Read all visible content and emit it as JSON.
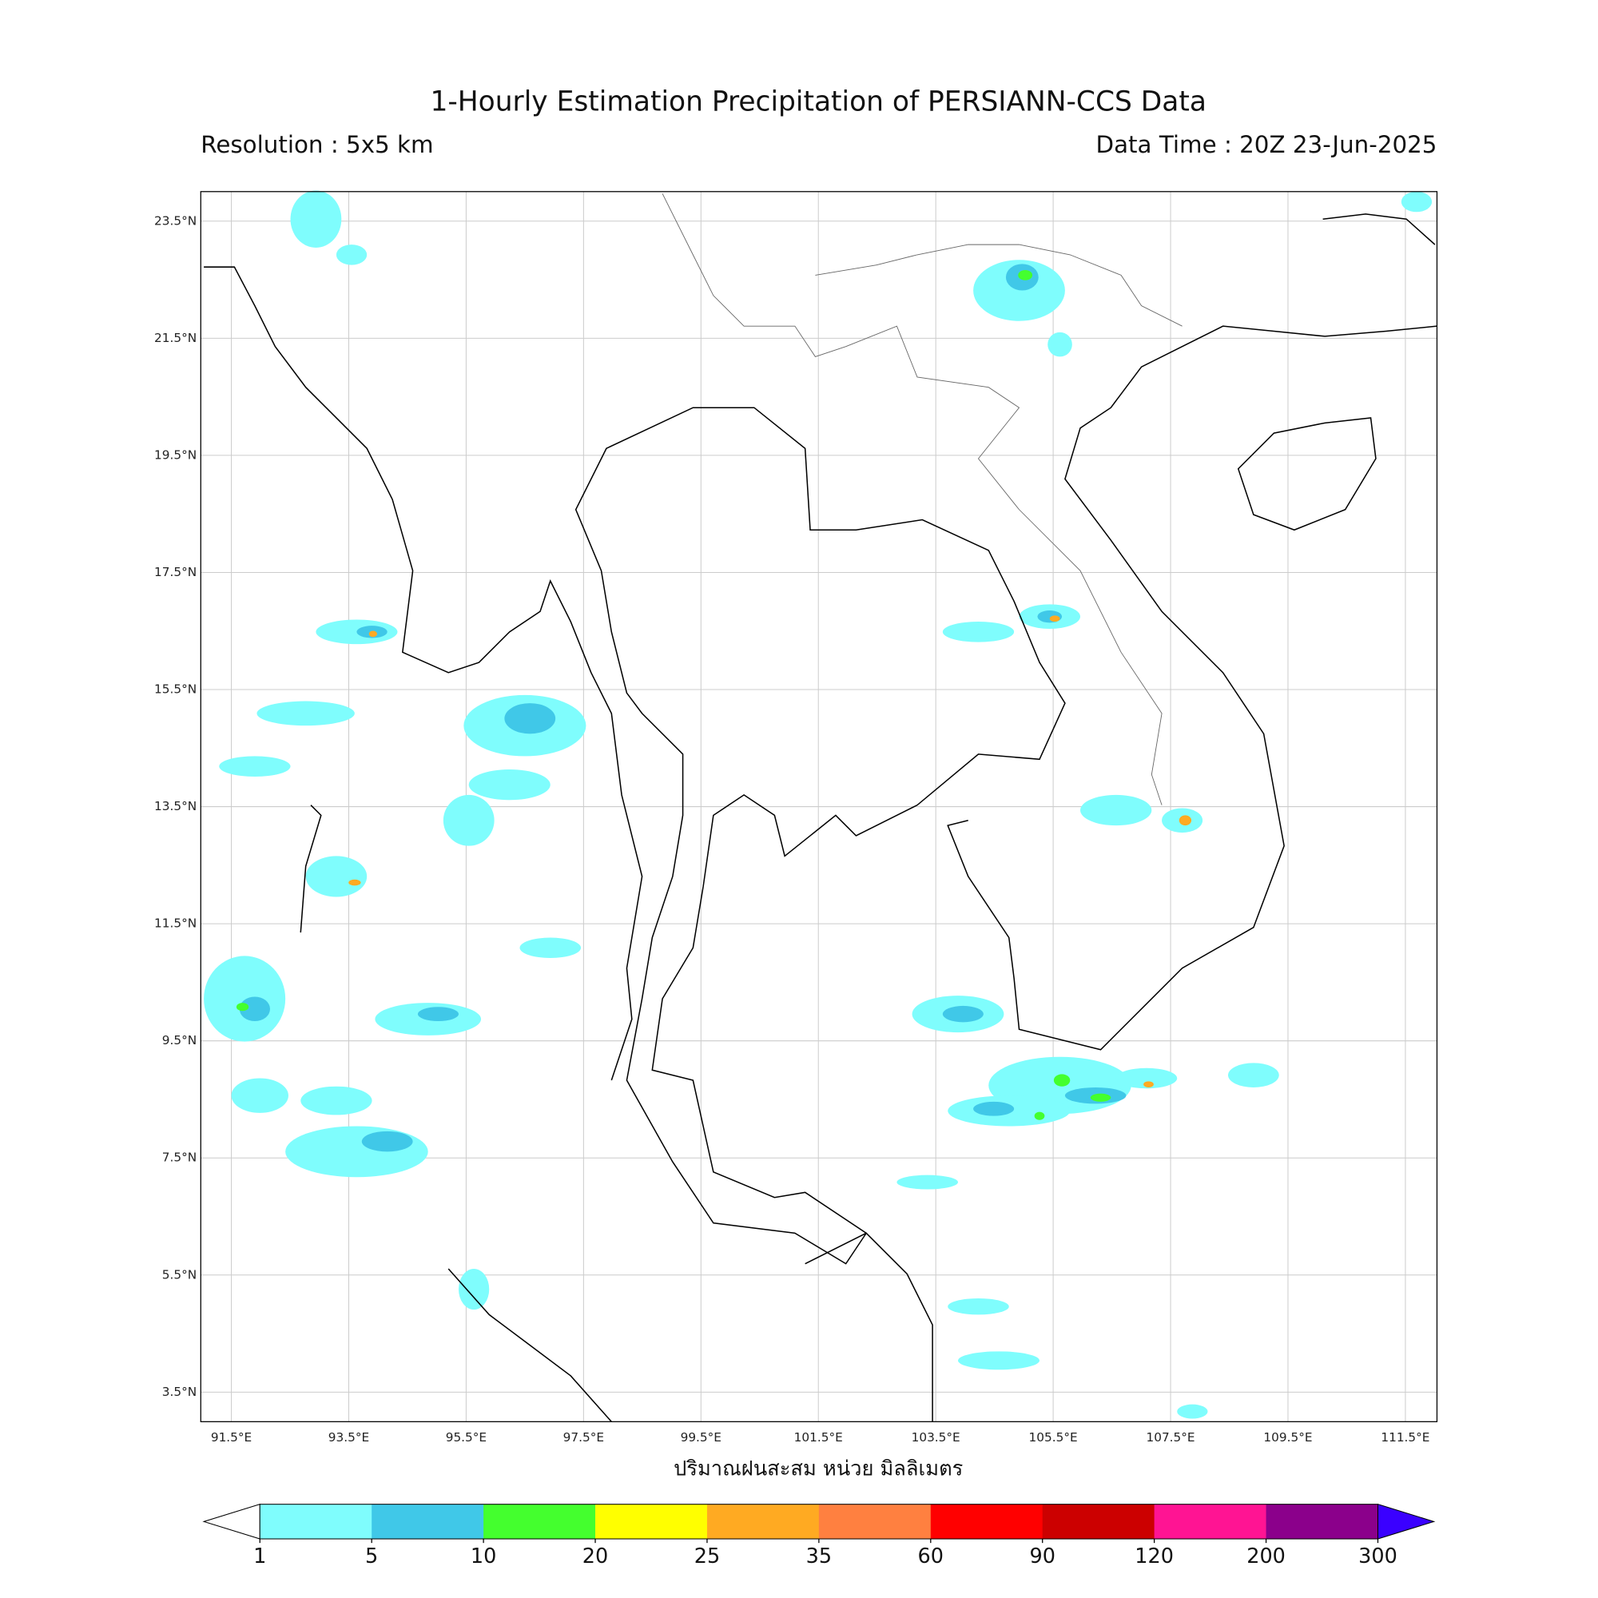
{
  "title": "1-Hourly Estimation Precipitation of PERSIANN-CCS Data",
  "resolution": "Resolution : 5x5 km",
  "data_time": "Data Time : 20Z 23-Jun-2025",
  "map": {
    "lon_labels": [
      "91.5°E",
      "93.5°E",
      "95.5°E",
      "97.5°E",
      "99.5°E",
      "101.5°E",
      "103.5°E",
      "105.5°E",
      "107.5°E",
      "109.5°E",
      "111.5°E"
    ],
    "lat_labels": [
      "23.5°N",
      "21.5°N",
      "19.5°N",
      "17.5°N",
      "15.5°N",
      "13.5°N",
      "11.5°N",
      "9.5°N",
      "7.5°N",
      "5.5°N",
      "3.5°N"
    ]
  },
  "xlabel": "ปริมาณฝนสะสม หน่วย มิลลิเมตร",
  "colorbar": {
    "levels": [
      1,
      5,
      10,
      20,
      25,
      35,
      60,
      90,
      120,
      200,
      300
    ],
    "colors": [
      "#7ffdfd",
      "#40c8e8",
      "#44ff2e",
      "#ffff00",
      "#ffaa22",
      "#ff8040",
      "#ff0000",
      "#cc0000",
      "#ff1493",
      "#8b008b"
    ],
    "under_color": "#ffffff",
    "over_color": "#3a00ff"
  }
}
